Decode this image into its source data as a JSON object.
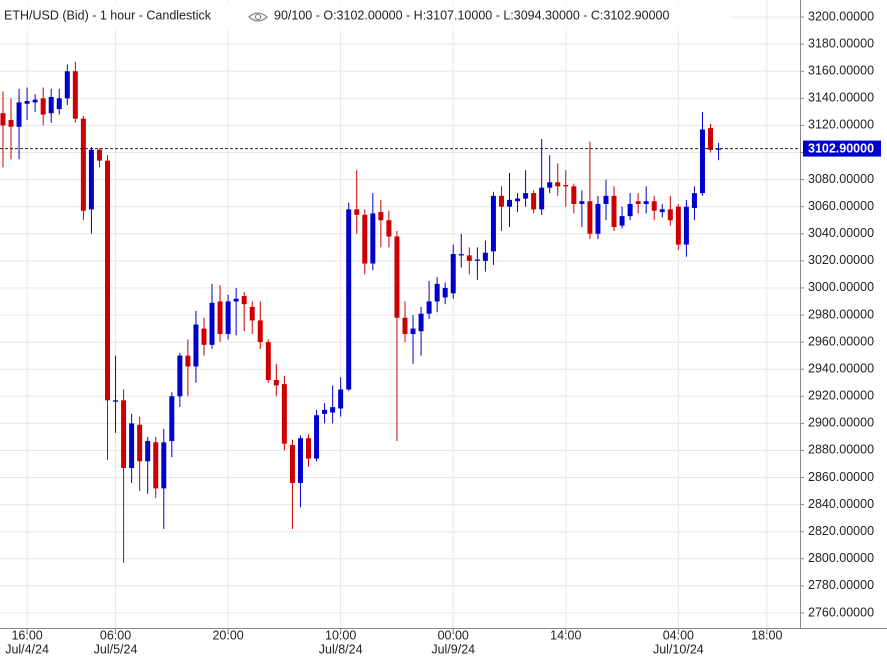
{
  "chart_data": {
    "type": "candlestick",
    "title": "ETH/USD (Bid) - 1 hour - Candlestick",
    "info": "90/100 - O:3102.00000 - H:3107.10000 - L:3094.30000 - C:3102.90000",
    "up_color": "#0000cc",
    "down_color": "#cc0000",
    "grid": true,
    "xlim": [
      -0.37,
      99.13
    ],
    "ylim": [
      2748.9,
      3212.6
    ],
    "xticks": [
      {
        "value": 3,
        "label": "16:00",
        "date": "Jul/4/24"
      },
      {
        "value": 14,
        "label": "06:00",
        "date": "Jul/5/24"
      },
      {
        "value": 28,
        "label": "20:00"
      },
      {
        "value": 42,
        "label": "10:00",
        "date": "Jul/8/24"
      },
      {
        "value": 56,
        "label": "00:00",
        "date": "Jul/9/24"
      },
      {
        "value": 70,
        "label": "14:00"
      },
      {
        "value": 84,
        "label": "04:00",
        "date": "Jul/10/24"
      },
      {
        "value": 95,
        "label": "18:00"
      }
    ],
    "yticks": [
      {
        "value": 2760,
        "label": "2760.00000"
      },
      {
        "value": 2780,
        "label": "2780.00000"
      },
      {
        "value": 2800,
        "label": "2800.00000"
      },
      {
        "value": 2820,
        "label": "2820.00000"
      },
      {
        "value": 2840,
        "label": "2840.00000"
      },
      {
        "value": 2860,
        "label": "2860.00000"
      },
      {
        "value": 2880,
        "label": "2880.00000"
      },
      {
        "value": 2900,
        "label": "2900.00000"
      },
      {
        "value": 2920,
        "label": "2920.00000"
      },
      {
        "value": 2940,
        "label": "2940.00000"
      },
      {
        "value": 2960,
        "label": "2960.00000"
      },
      {
        "value": 2980,
        "label": "2980.00000"
      },
      {
        "value": 3000,
        "label": "3000.00000"
      },
      {
        "value": 3020,
        "label": "3020.00000"
      },
      {
        "value": 3040,
        "label": "3040.00000"
      },
      {
        "value": 3060,
        "label": "3060.00000"
      },
      {
        "value": 3080,
        "label": "3080.00000"
      },
      {
        "value": 3100,
        "label": "3100.00000"
      },
      {
        "value": 3120,
        "label": "3120.00000"
      },
      {
        "value": 3140,
        "label": "3140.00000"
      },
      {
        "value": 3160,
        "label": "3160.00000"
      },
      {
        "value": 3180,
        "label": "3180.00000"
      },
      {
        "value": 3200,
        "label": "3200.00000"
      }
    ],
    "last_price": {
      "value": 3102.9,
      "label": "3102.90000"
    },
    "open": [
      3129,
      3124,
      3119,
      3136,
      3137,
      3140,
      3129,
      3132,
      3140,
      3160,
      3125,
      3058,
      3102,
      3094,
      2916,
      2917,
      2867,
      2899,
      2872,
      2886,
      2852,
      2887,
      2920,
      2950,
      2942,
      2970,
      2958,
      2990,
      2966,
      2990,
      2994,
      2986,
      2976,
      2960,
      2932,
      2929,
      2884,
      2856,
      2889,
      2874,
      2907,
      2908,
      2911,
      2925,
      3058,
      3054,
      3018,
      3056,
      3050,
      3038,
      2978,
      2966,
      2968,
      2981,
      2990,
      2993,
      2996,
      3024,
      3024,
      3020,
      3020,
      3027,
      3068,
      3060,
      3064,
      3066,
      3070,
      3058,
      3074,
      3078,
      3076,
      3075,
      3062,
      3064,
      3040,
      3062,
      3068,
      3046,
      3053,
      3064,
      3062,
      3064,
      3056,
      3058,
      3060,
      3032,
      3059,
      3070,
      3118,
      3102
    ],
    "high": [
      3145,
      3140,
      3147,
      3148,
      3143,
      3148,
      3147,
      3147,
      3165,
      3167,
      3127,
      3104,
      3103,
      3098,
      2950,
      2925,
      2907,
      2905,
      2890,
      2890,
      2896,
      2923,
      2952,
      2962,
      2983,
      2978,
      3003,
      3002,
      2995,
      3000,
      2997,
      2990,
      2990,
      2962,
      2944,
      2935,
      2888,
      2891,
      2892,
      2910,
      2915,
      2928,
      2934,
      3063,
      3087,
      3058,
      3070,
      3065,
      3057,
      3042,
      2990,
      2980,
      2986,
      3005,
      3008,
      3004,
      3032,
      3040,
      3030,
      3030,
      3035,
      3071,
      3075,
      3085,
      3070,
      3087,
      3072,
      3110,
      3098,
      3092,
      3087,
      3077,
      3072,
      3108,
      3068,
      3080,
      3075,
      3060,
      3070,
      3070,
      3075,
      3068,
      3062,
      3068,
      3062,
      3065,
      3075,
      3130,
      3121,
      3107.1
    ],
    "low": [
      3089,
      3095,
      3095,
      3124,
      3130,
      3120,
      3122,
      3128,
      3135,
      3122,
      3050,
      3040,
      3089,
      2873,
      2893,
      2797,
      2856,
      2850,
      2848,
      2845,
      2822,
      2875,
      2912,
      2920,
      2930,
      2950,
      2955,
      2960,
      2962,
      2965,
      2968,
      2966,
      2955,
      2930,
      2920,
      2880,
      2822,
      2838,
      2868,
      2872,
      2900,
      2900,
      2905,
      2924,
      3040,
      3010,
      3013,
      3030,
      3030,
      2887,
      2960,
      2944,
      2950,
      2977,
      2982,
      2988,
      2992,
      3015,
      3010,
      3006,
      3012,
      3017,
      3042,
      3045,
      3056,
      3060,
      3055,
      3054,
      3070,
      3068,
      3060,
      3055,
      3045,
      3036,
      3036,
      3050,
      3042,
      3044,
      3050,
      3055,
      3055,
      3050,
      3052,
      3046,
      3028,
      3023,
      3050,
      3068,
      3100,
      3094.3
    ],
    "close": [
      3120,
      3119,
      3137,
      3138,
      3139,
      3128,
      3141,
      3140,
      3160,
      3125,
      3057,
      3102,
      3094,
      2917,
      2917,
      2867,
      2900,
      2872,
      2887,
      2852,
      2886,
      2920,
      2950,
      2942,
      2973,
      2958,
      2989,
      2966,
      2990,
      2992,
      2988,
      2976,
      2960,
      2932,
      2928,
      2885,
      2856,
      2889,
      2874,
      2906,
      2910,
      2912,
      2925,
      3058,
      3054,
      3018,
      3055,
      3050,
      3038,
      2978,
      2966,
      2970,
      2981,
      2990,
      3003,
      3000,
      3025,
      3025,
      3020,
      3021,
      3026,
      3068,
      3060,
      3065,
      3066,
      3070,
      3058,
      3074,
      3078,
      3075,
      3075,
      3062,
      3064,
      3040,
      3062,
      3068,
      3045,
      3053,
      3062,
      3062,
      3064,
      3057,
      3058,
      3050,
      3032,
      3060,
      3070,
      3117,
      3102,
      3102.9
    ]
  }
}
